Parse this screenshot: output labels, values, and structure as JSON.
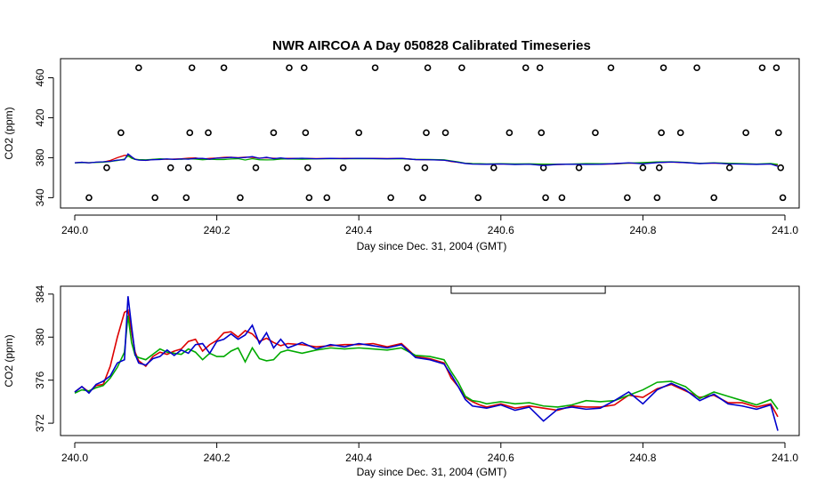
{
  "chart_data": [
    {
      "type": "line",
      "title": "NWR AIRCOA A  Day 050828  Calibrated Timeseries",
      "xlabel": "Day since Dec. 31, 2004 (GMT)",
      "ylabel": "CO2 (ppm)",
      "xlim": [
        240.0,
        241.0
      ],
      "ylim": [
        335,
        472
      ],
      "xticks": [
        240.0,
        240.2,
        240.4,
        240.6,
        240.8,
        241.0
      ],
      "yticks": [
        340,
        380,
        420,
        460
      ],
      "xtick_labels": [
        "240.0",
        "240.2",
        "240.4",
        "240.6",
        "240.8",
        "241.0"
      ],
      "ytick_labels": [
        "340",
        "380",
        "420",
        "460"
      ],
      "grid": false,
      "legend": "none",
      "colors": {
        "series_1": "#dd0000",
        "series_2": "#00aa00",
        "series_3": "#0000cc",
        "points": "#000000"
      },
      "calibration_points": {
        "x": [
          240.02,
          240.045,
          240.065,
          240.09,
          240.113,
          240.135,
          240.157,
          240.16,
          240.162,
          240.165,
          240.188,
          240.21,
          240.233,
          240.255,
          240.28,
          240.302,
          240.323,
          240.325,
          240.328,
          240.33,
          240.355,
          240.378,
          240.4,
          240.423,
          240.445,
          240.468,
          240.49,
          240.493,
          240.495,
          240.497,
          240.522,
          240.545,
          240.568,
          240.59,
          240.612,
          240.635,
          240.655,
          240.657,
          240.66,
          240.663,
          240.686,
          240.71,
          240.733,
          240.755,
          240.778,
          240.8,
          240.82,
          240.823,
          240.826,
          240.829,
          240.853,
          240.876,
          240.9,
          240.922,
          240.945,
          240.968,
          240.988,
          240.991,
          240.994,
          240.997
        ],
        "y": [
          340,
          370,
          405,
          470,
          340,
          370,
          340,
          370,
          405,
          470,
          405,
          470,
          340,
          370,
          405,
          470,
          470,
          405,
          370,
          340,
          340,
          370,
          405,
          470,
          340,
          370,
          340,
          370,
          405,
          470,
          405,
          470,
          340,
          370,
          405,
          470,
          470,
          405,
          370,
          340,
          340,
          370,
          405,
          470,
          340,
          370,
          340,
          370,
          405,
          470,
          405,
          470,
          340,
          370,
          405,
          470,
          470,
          405,
          370,
          340
        ]
      }
    },
    {
      "type": "line",
      "title": "",
      "xlabel": "Day since Dec. 31, 2004 (GMT)",
      "ylabel": "CO2 (ppm)",
      "xlim": [
        240.0,
        241.0
      ],
      "ylim": [
        371.1,
        384.4
      ],
      "xticks": [
        240.0,
        240.2,
        240.4,
        240.6,
        240.8,
        241.0
      ],
      "yticks": [
        372,
        376,
        380,
        384
      ],
      "xtick_labels": [
        "240.0",
        "240.2",
        "240.4",
        "240.6",
        "240.8",
        "241.0"
      ],
      "ytick_labels": [
        "372",
        "376",
        "380",
        "384"
      ],
      "grid": false,
      "legend": "none",
      "bracket_interval": [
        240.53,
        240.747
      ],
      "colors": {
        "series_1": "#dd0000",
        "series_2": "#00aa00",
        "series_3": "#0000cc"
      },
      "series": [
        {
          "color": "#dd0000",
          "x": [
            240.0,
            240.01,
            240.02,
            240.03,
            240.04,
            240.05,
            240.06,
            240.07,
            240.075,
            240.08,
            240.085,
            240.09,
            240.1,
            240.11,
            240.12,
            240.13,
            240.14,
            240.15,
            240.16,
            240.17,
            240.18,
            240.19,
            240.2,
            240.21,
            240.22,
            240.23,
            240.24,
            240.25,
            240.26,
            240.27,
            240.28,
            240.29,
            240.3,
            240.32,
            240.34,
            240.36,
            240.38,
            240.4,
            240.42,
            240.44,
            240.46,
            240.48,
            240.5,
            240.52,
            240.53,
            240.54,
            240.55,
            240.56,
            240.57,
            240.58,
            240.6,
            240.62,
            240.64,
            240.66,
            240.68,
            240.7,
            240.72,
            240.74,
            240.76,
            240.78,
            240.8,
            240.82,
            240.84,
            240.86,
            240.88,
            240.9,
            240.92,
            240.94,
            240.96,
            240.98,
            240.99
          ],
          "y": [
            374.9,
            375.4,
            374.9,
            375.5,
            375.6,
            377.3,
            380.0,
            382.3,
            382.5,
            380.5,
            378.6,
            377.8,
            377.3,
            378.2,
            378.6,
            378.4,
            378.7,
            378.9,
            379.6,
            379.8,
            378.7,
            379.3,
            379.7,
            380.4,
            380.5,
            380.0,
            380.6,
            380.3,
            379.6,
            379.9,
            379.5,
            379.2,
            379.4,
            379.3,
            379.1,
            379.2,
            379.3,
            379.3,
            379.4,
            379.1,
            379.4,
            378.2,
            378.0,
            377.6,
            376.2,
            375.4,
            374.4,
            374.0,
            373.7,
            373.5,
            373.8,
            373.4,
            373.6,
            373.4,
            373.2,
            373.6,
            373.5,
            373.5,
            373.7,
            374.6,
            374.4,
            375.2,
            375.6,
            375.0,
            374.4,
            374.6,
            373.9,
            373.9,
            373.5,
            373.8,
            372.6
          ]
        },
        {
          "color": "#00aa00",
          "x": [
            240.0,
            240.01,
            240.02,
            240.03,
            240.04,
            240.05,
            240.06,
            240.07,
            240.075,
            240.08,
            240.085,
            240.09,
            240.1,
            240.11,
            240.12,
            240.13,
            240.14,
            240.15,
            240.16,
            240.17,
            240.18,
            240.19,
            240.2,
            240.21,
            240.22,
            240.23,
            240.24,
            240.25,
            240.26,
            240.27,
            240.28,
            240.29,
            240.3,
            240.32,
            240.34,
            240.36,
            240.38,
            240.4,
            240.42,
            240.44,
            240.46,
            240.48,
            240.5,
            240.52,
            240.53,
            240.54,
            240.55,
            240.56,
            240.57,
            240.58,
            240.6,
            240.62,
            240.64,
            240.66,
            240.68,
            240.7,
            240.72,
            240.74,
            240.76,
            240.78,
            240.8,
            240.82,
            240.84,
            240.86,
            240.88,
            240.9,
            240.92,
            240.94,
            240.96,
            240.98,
            240.99
          ],
          "y": [
            374.8,
            375.1,
            375.0,
            375.3,
            375.5,
            376.2,
            377.2,
            378.6,
            382.0,
            379.5,
            378.3,
            378.1,
            377.9,
            378.4,
            378.9,
            378.6,
            378.5,
            378.4,
            378.9,
            378.6,
            377.9,
            378.5,
            378.2,
            378.2,
            378.7,
            379.0,
            377.7,
            379.0,
            378.0,
            377.8,
            377.9,
            378.6,
            378.8,
            378.5,
            378.8,
            379.0,
            378.9,
            379.0,
            378.9,
            378.8,
            379.0,
            378.3,
            378.2,
            377.9,
            376.8,
            375.8,
            374.5,
            374.1,
            374.0,
            373.8,
            374.0,
            373.8,
            373.9,
            373.6,
            373.5,
            373.7,
            374.1,
            374.0,
            374.1,
            374.6,
            375.1,
            375.8,
            375.9,
            375.4,
            374.3,
            374.9,
            374.5,
            374.1,
            373.7,
            374.2,
            373.3
          ]
        },
        {
          "color": "#0000cc",
          "x": [
            240.0,
            240.01,
            240.02,
            240.03,
            240.04,
            240.05,
            240.06,
            240.07,
            240.075,
            240.08,
            240.085,
            240.09,
            240.1,
            240.11,
            240.12,
            240.13,
            240.14,
            240.15,
            240.16,
            240.17,
            240.18,
            240.19,
            240.2,
            240.21,
            240.22,
            240.23,
            240.24,
            240.25,
            240.26,
            240.27,
            240.28,
            240.29,
            240.3,
            240.32,
            240.34,
            240.36,
            240.38,
            240.4,
            240.42,
            240.44,
            240.46,
            240.48,
            240.5,
            240.52,
            240.53,
            240.54,
            240.55,
            240.56,
            240.57,
            240.58,
            240.6,
            240.62,
            240.64,
            240.66,
            240.68,
            240.7,
            240.72,
            240.74,
            240.76,
            240.78,
            240.8,
            240.82,
            240.84,
            240.86,
            240.88,
            240.9,
            240.92,
            240.94,
            240.96,
            240.98,
            240.99
          ],
          "y": [
            374.9,
            375.4,
            374.8,
            375.6,
            375.9,
            376.4,
            377.6,
            377.9,
            383.8,
            381.0,
            378.4,
            377.6,
            377.4,
            378.0,
            378.2,
            378.8,
            378.3,
            378.8,
            378.5,
            379.3,
            379.4,
            378.5,
            379.6,
            379.8,
            380.3,
            379.8,
            380.2,
            381.1,
            379.4,
            380.4,
            379.0,
            379.8,
            379.0,
            379.5,
            378.9,
            379.3,
            379.1,
            379.4,
            379.2,
            379.0,
            379.3,
            378.1,
            377.9,
            377.5,
            376.5,
            375.4,
            374.2,
            373.6,
            373.5,
            373.4,
            373.7,
            373.2,
            373.5,
            372.2,
            373.3,
            373.5,
            373.3,
            373.4,
            374.1,
            374.9,
            373.8,
            375.1,
            375.7,
            375.1,
            374.1,
            374.7,
            373.8,
            373.6,
            373.3,
            373.7,
            371.3
          ]
        }
      ]
    }
  ]
}
